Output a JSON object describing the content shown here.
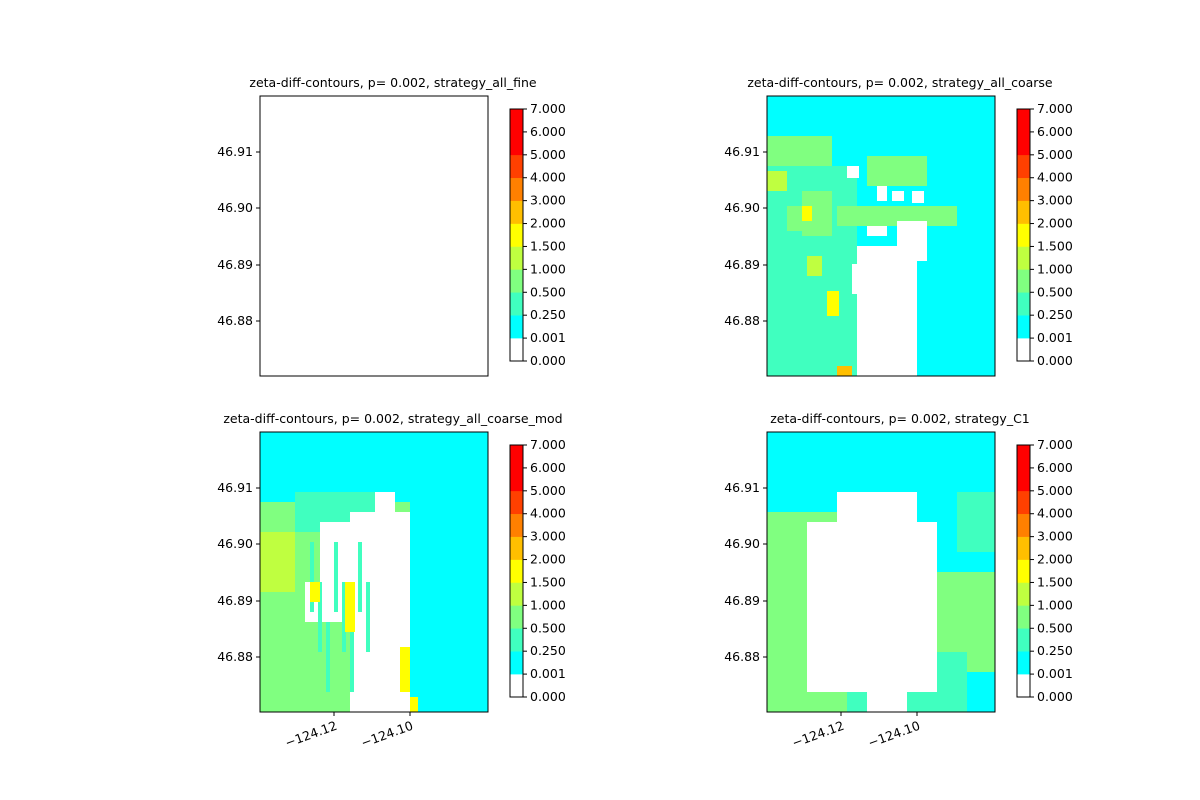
{
  "chart_data": [
    {
      "type": "heatmap",
      "title": "zeta-diff-contours, p= 0.002, strategy_all_fine",
      "yticks": [
        "46.91",
        "46.90",
        "46.89",
        "46.88"
      ],
      "xticks": [],
      "pattern": "fine",
      "colorbar": {
        "levels": [
          "0.000",
          "0.001",
          "0.250",
          "0.500",
          "1.000",
          "1.500",
          "2.000",
          "3.000",
          "4.000",
          "5.000",
          "6.000",
          "7.000"
        ],
        "colors": [
          "#ffffff",
          "#00ffff",
          "#40ffbf",
          "#80ff80",
          "#bfff40",
          "#ffff00",
          "#ffbf00",
          "#ff8000",
          "#ff4000",
          "#ff0000",
          "#ff0000"
        ]
      }
    },
    {
      "type": "heatmap",
      "title": "zeta-diff-contours, p= 0.002, strategy_all_coarse",
      "yticks": [
        "46.91",
        "46.90",
        "46.89",
        "46.88"
      ],
      "xticks": [],
      "pattern": "coarse",
      "colorbar": {
        "levels": [
          "0.000",
          "0.001",
          "0.250",
          "0.500",
          "1.000",
          "1.500",
          "2.000",
          "3.000",
          "4.000",
          "5.000",
          "6.000",
          "7.000"
        ],
        "colors": [
          "#ffffff",
          "#00ffff",
          "#40ffbf",
          "#80ff80",
          "#bfff40",
          "#ffff00",
          "#ffbf00",
          "#ff8000",
          "#ff4000",
          "#ff0000",
          "#ff0000"
        ]
      }
    },
    {
      "type": "heatmap",
      "title": "zeta-diff-contours, p= 0.002, strategy_all_coarse_mod",
      "yticks": [
        "46.91",
        "46.90",
        "46.89",
        "46.88"
      ],
      "xticks": [
        "−124.12",
        "−124.10"
      ],
      "pattern": "coarse_mod",
      "colorbar": {
        "levels": [
          "0.000",
          "0.001",
          "0.250",
          "0.500",
          "1.000",
          "1.500",
          "2.000",
          "3.000",
          "4.000",
          "5.000",
          "6.000",
          "7.000"
        ],
        "colors": [
          "#ffffff",
          "#00ffff",
          "#40ffbf",
          "#80ff80",
          "#bfff40",
          "#ffff00",
          "#ffbf00",
          "#ff8000",
          "#ff4000",
          "#ff0000",
          "#ff0000"
        ]
      }
    },
    {
      "type": "heatmap",
      "title": "zeta-diff-contours, p= 0.002, strategy_C1",
      "yticks": [
        "46.91",
        "46.90",
        "46.89",
        "46.88"
      ],
      "xticks": [
        "−124.12",
        "−124.10"
      ],
      "pattern": "c1",
      "colorbar": {
        "levels": [
          "0.000",
          "0.001",
          "0.250",
          "0.500",
          "1.000",
          "1.500",
          "2.000",
          "3.000",
          "4.000",
          "5.000",
          "6.000",
          "7.000"
        ],
        "colors": [
          "#ffffff",
          "#00ffff",
          "#40ffbf",
          "#80ff80",
          "#bfff40",
          "#ffff00",
          "#ffbf00",
          "#ff8000",
          "#ff4000",
          "#ff0000",
          "#ff0000"
        ]
      }
    }
  ]
}
